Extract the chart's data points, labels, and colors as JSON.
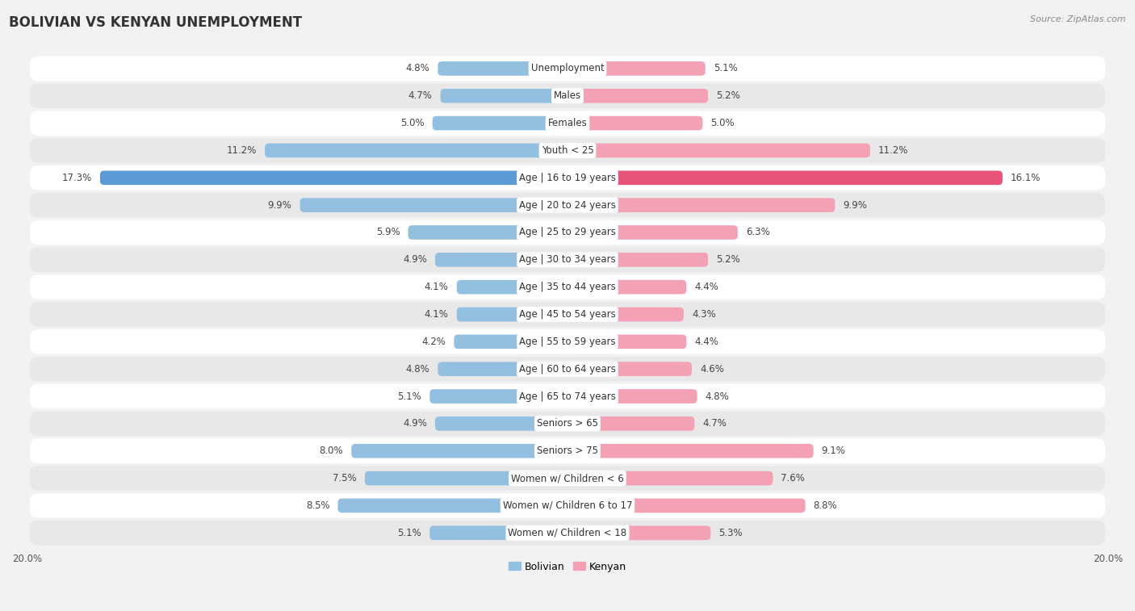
{
  "title": "BOLIVIAN VS KENYAN UNEMPLOYMENT",
  "source": "Source: ZipAtlas.com",
  "categories": [
    "Unemployment",
    "Males",
    "Females",
    "Youth < 25",
    "Age | 16 to 19 years",
    "Age | 20 to 24 years",
    "Age | 25 to 29 years",
    "Age | 30 to 34 years",
    "Age | 35 to 44 years",
    "Age | 45 to 54 years",
    "Age | 55 to 59 years",
    "Age | 60 to 64 years",
    "Age | 65 to 74 years",
    "Seniors > 65",
    "Seniors > 75",
    "Women w/ Children < 6",
    "Women w/ Children 6 to 17",
    "Women w/ Children < 18"
  ],
  "bolivian": [
    4.8,
    4.7,
    5.0,
    11.2,
    17.3,
    9.9,
    5.9,
    4.9,
    4.1,
    4.1,
    4.2,
    4.8,
    5.1,
    4.9,
    8.0,
    7.5,
    8.5,
    5.1
  ],
  "kenyan": [
    5.1,
    5.2,
    5.0,
    11.2,
    16.1,
    9.9,
    6.3,
    5.2,
    4.4,
    4.3,
    4.4,
    4.6,
    4.8,
    4.7,
    9.1,
    7.6,
    8.8,
    5.3
  ],
  "bolivian_color": "#93bfe0",
  "kenyan_color": "#f4a0b5",
  "bolivian_highlight_color": "#5b9bd5",
  "kenyan_highlight_color": "#e8537a",
  "highlight_rows": [
    4
  ],
  "bar_height": 0.52,
  "xlim": 20.0,
  "bg_color": "#f2f2f2",
  "row_bg_white": "#ffffff",
  "row_bg_gray": "#e8e8e8",
  "title_fontsize": 12,
  "source_fontsize": 8,
  "label_fontsize": 8.5,
  "value_fontsize": 8.5,
  "legend_fontsize": 9
}
